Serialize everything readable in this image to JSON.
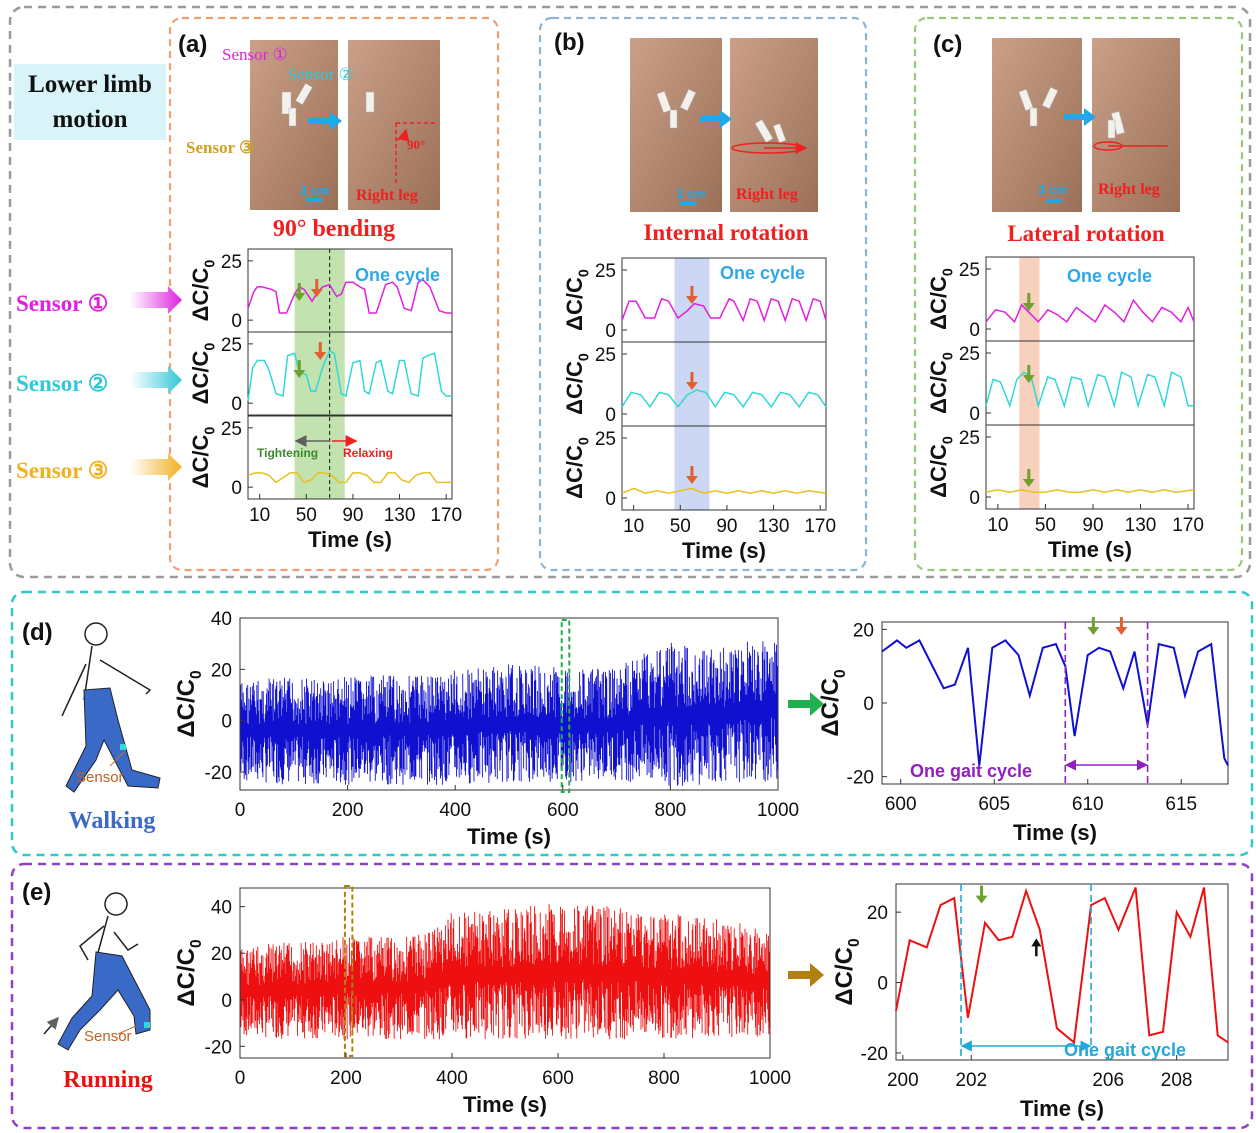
{
  "figure": {
    "title_box": {
      "line1": "Lower limb",
      "line2": "motion"
    },
    "sensor_labels": [
      "Sensor ①",
      "Sensor ②",
      "Sensor ③"
    ],
    "colors": {
      "magenta": "#e020e0",
      "cyan": "#30d8d8",
      "yellow": "#e8c020",
      "blue": "#1010d0",
      "red": "#ee1010",
      "green_arrow": "#70a030",
      "orange_arrow": "#e06030",
      "frame_gray": "#9a9a9a",
      "frame_orange": "#f0a070",
      "frame_blue": "#8ab4d8",
      "frame_green": "#98c878",
      "frame_teal": "#30c8c8",
      "frame_purple": "#9040c0",
      "purple_text": "#9020c0"
    },
    "panels": {
      "a": {
        "letter": "(a)",
        "title": "90° bending",
        "photo_labels": {
          "s1": "Sensor ①",
          "s2": "Sensor ②",
          "s3": "Sensor ③",
          "scale": "3 cm",
          "leg": "Right leg",
          "angle": "90°"
        },
        "one_cycle": "One cycle",
        "tightening": "Tightening",
        "relaxing": "Relaxing",
        "ylabel": "ΔC/C₀",
        "xlabel": "Time (s)"
      },
      "b": {
        "letter": "(b)",
        "title": "Internal rotation",
        "photo_labels": {
          "scale": "3 cm",
          "leg": "Right leg"
        },
        "one_cycle": "One cycle",
        "ylabel": "ΔC/C₀",
        "xlabel": "Time (s)"
      },
      "c": {
        "letter": "(c)",
        "title": "Lateral rotation",
        "photo_labels": {
          "scale": "3 cm",
          "leg": "Right leg"
        },
        "one_cycle": "One cycle",
        "ylabel": "ΔC/C₀",
        "xlabel": "Time (s)"
      },
      "d": {
        "letter": "(d)",
        "activity": "Walking",
        "sensor": "Sensor",
        "gait": "One gait cycle",
        "ylabel": "ΔC/C₀",
        "xlabel": "Time (s)"
      },
      "e": {
        "letter": "(e)",
        "activity": "Running",
        "sensor": "Sensor",
        "gait": "One gait cycle",
        "ylabel": "ΔC/C₀",
        "xlabel": "Time (s)"
      }
    }
  },
  "chart_data": [
    {
      "id": "a",
      "type": "line",
      "x_ticks": [
        10,
        50,
        90,
        130,
        170
      ],
      "xlim": [
        0,
        175
      ],
      "highlight": [
        40,
        83
      ],
      "dashed_line": 70,
      "series": [
        {
          "name": "Sensor ①",
          "color": "#e020e0",
          "y_ticks": [
            0,
            25
          ],
          "ylim": [
            -5,
            30
          ],
          "x": [
            0,
            5,
            8,
            12,
            20,
            24,
            27,
            33,
            40,
            44,
            48,
            55,
            60,
            64,
            70,
            76,
            80,
            84,
            90,
            96,
            100,
            104,
            110,
            118,
            124,
            128,
            134,
            140,
            146,
            150,
            156,
            164,
            170,
            175
          ],
          "y": [
            5,
            12,
            14,
            14,
            13,
            12,
            3,
            3,
            11,
            14,
            13,
            8,
            12,
            14,
            15,
            10,
            11,
            16,
            16,
            14,
            13,
            3,
            3,
            15,
            16,
            14,
            5,
            4,
            16,
            17,
            14,
            4,
            3,
            3
          ]
        },
        {
          "name": "Sensor ②",
          "color": "#30d8d8",
          "y_ticks": [
            0,
            25
          ],
          "ylim": [
            -5,
            30
          ],
          "x": [
            0,
            4,
            8,
            14,
            18,
            24,
            30,
            34,
            40,
            44,
            50,
            54,
            58,
            64,
            70,
            74,
            80,
            84,
            90,
            96,
            100,
            104,
            110,
            114,
            120,
            124,
            130,
            134,
            140,
            146,
            150,
            154,
            160,
            166,
            170,
            175
          ],
          "y": [
            1,
            15,
            18,
            18,
            14,
            4,
            3,
            20,
            21,
            13,
            12,
            5,
            5,
            15,
            22,
            21,
            4,
            3,
            17,
            18,
            5,
            4,
            17,
            18,
            5,
            4,
            18,
            18,
            4,
            3,
            19,
            20,
            21,
            5,
            3,
            3
          ]
        },
        {
          "name": "Sensor ③",
          "color": "#e8c020",
          "y_ticks": [
            0,
            25
          ],
          "ylim": [
            -5,
            30
          ],
          "x": [
            0,
            6,
            12,
            18,
            24,
            30,
            36,
            42,
            48,
            54,
            60,
            66,
            72,
            78,
            84,
            90,
            96,
            102,
            108,
            114,
            120,
            126,
            132,
            138,
            144,
            150,
            156,
            162,
            168,
            175
          ],
          "y": [
            5,
            6,
            6,
            5,
            2,
            4,
            6,
            6,
            2,
            3,
            6,
            6,
            5,
            2,
            2,
            6,
            6,
            5,
            2,
            2,
            6,
            6,
            3,
            2,
            5,
            6,
            6,
            2,
            2,
            2
          ]
        }
      ]
    },
    {
      "id": "b",
      "type": "line",
      "x_ticks": [
        10,
        50,
        90,
        130,
        170
      ],
      "xlim": [
        0,
        175
      ],
      "highlight": [
        45,
        75
      ],
      "series": [
        {
          "name": "Sensor ①",
          "color": "#e020e0",
          "y_ticks": [
            0,
            25
          ],
          "ylim": [
            -5,
            30
          ],
          "x": [
            0,
            6,
            12,
            20,
            28,
            34,
            40,
            48,
            56,
            62,
            70,
            76,
            84,
            92,
            96,
            104,
            110,
            116,
            122,
            128,
            134,
            140,
            146,
            152,
            158,
            164,
            170,
            175
          ],
          "y": [
            4,
            12,
            12,
            5,
            5,
            13,
            12,
            5,
            8,
            11,
            10,
            5,
            5,
            13,
            12,
            4,
            13,
            12,
            4,
            13,
            12,
            4,
            13,
            12,
            4,
            13,
            12,
            4
          ]
        },
        {
          "name": "Sensor ②",
          "color": "#30d8d8",
          "y_ticks": [
            0,
            25
          ],
          "ylim": [
            -5,
            30
          ],
          "x": [
            0,
            8,
            16,
            24,
            32,
            40,
            48,
            56,
            64,
            72,
            80,
            88,
            96,
            104,
            112,
            120,
            128,
            136,
            144,
            152,
            160,
            168,
            175
          ],
          "y": [
            3,
            9,
            8,
            3,
            9,
            8,
            3,
            8,
            10,
            9,
            3,
            9,
            8,
            3,
            9,
            8,
            3,
            9,
            8,
            3,
            9,
            8,
            3
          ]
        },
        {
          "name": "Sensor ③",
          "color": "#e8c020",
          "y_ticks": [
            0,
            25
          ],
          "ylim": [
            -5,
            30
          ],
          "x": [
            0,
            10,
            20,
            30,
            40,
            50,
            60,
            70,
            80,
            90,
            100,
            110,
            120,
            130,
            140,
            150,
            160,
            175
          ],
          "y": [
            2,
            4,
            2,
            3,
            2,
            3,
            4,
            2,
            3,
            2,
            3,
            2,
            3,
            2,
            3,
            2,
            3,
            2
          ]
        }
      ]
    },
    {
      "id": "c",
      "type": "line",
      "x_ticks": [
        10,
        50,
        90,
        130,
        170
      ],
      "xlim": [
        0,
        175
      ],
      "highlight": [
        28,
        45
      ],
      "series": [
        {
          "name": "Sensor ①",
          "color": "#e020e0",
          "y_ticks": [
            0,
            25
          ],
          "ylim": [
            -5,
            30
          ],
          "x": [
            0,
            8,
            16,
            24,
            30,
            36,
            44,
            52,
            60,
            68,
            76,
            84,
            92,
            100,
            108,
            116,
            124,
            132,
            140,
            148,
            156,
            164,
            170,
            175
          ],
          "y": [
            3,
            8,
            7,
            3,
            10,
            7,
            3,
            8,
            6,
            3,
            9,
            6,
            3,
            10,
            7,
            3,
            12,
            7,
            3,
            9,
            7,
            3,
            9,
            3
          ]
        },
        {
          "name": "Sensor ②",
          "color": "#30d8d8",
          "y_ticks": [
            0,
            25
          ],
          "ylim": [
            -5,
            30
          ],
          "x": [
            0,
            6,
            12,
            20,
            26,
            32,
            38,
            44,
            52,
            58,
            66,
            72,
            80,
            86,
            94,
            100,
            108,
            114,
            122,
            128,
            136,
            142,
            150,
            156,
            164,
            170,
            175
          ],
          "y": [
            3,
            14,
            13,
            3,
            14,
            17,
            15,
            3,
            15,
            14,
            3,
            15,
            14,
            3,
            16,
            15,
            3,
            17,
            15,
            3,
            16,
            15,
            3,
            17,
            15,
            3,
            3
          ]
        },
        {
          "name": "Sensor ③",
          "color": "#e8c020",
          "y_ticks": [
            0,
            25
          ],
          "ylim": [
            -5,
            30
          ],
          "x": [
            0,
            10,
            20,
            30,
            40,
            50,
            60,
            70,
            80,
            90,
            100,
            110,
            120,
            130,
            140,
            150,
            160,
            175
          ],
          "y": [
            2,
            3,
            2,
            3,
            2,
            2,
            3,
            2,
            2,
            3,
            2,
            3,
            2,
            3,
            2,
            3,
            2,
            3
          ]
        }
      ]
    },
    {
      "id": "d_full",
      "type": "line",
      "color": "#1010d0",
      "x_ticks": [
        0,
        200,
        400,
        600,
        800,
        1000
      ],
      "y_ticks": [
        -20,
        0,
        20,
        40
      ],
      "xlim": [
        0,
        1000
      ],
      "ylim": [
        -27,
        40
      ],
      "zoom_window": [
        598,
        612
      ],
      "envelope": {
        "x": [
          0,
          100,
          200,
          300,
          400,
          500,
          600,
          700,
          750,
          800,
          850,
          900,
          1000
        ],
        "upper": [
          16,
          17,
          17,
          18,
          20,
          22,
          21,
          20,
          28,
          32,
          28,
          29,
          33
        ],
        "lower": [
          -24,
          -25,
          -25,
          -25,
          -25,
          -24,
          -24,
          -23,
          -25,
          -26,
          -25,
          -24,
          -24
        ]
      }
    },
    {
      "id": "d_zoom",
      "type": "line",
      "color": "#1010d0",
      "x_ticks": [
        600,
        605,
        610,
        615
      ],
      "y_ticks": [
        -20,
        0,
        20
      ],
      "xlim": [
        599,
        617.5
      ],
      "ylim": [
        -22,
        22
      ],
      "gait_cycle": [
        608.8,
        613.2
      ],
      "x": [
        599,
        599.8,
        600.3,
        601,
        601.6,
        602.3,
        602.9,
        603.6,
        604.2,
        604.9,
        605.6,
        606.3,
        606.9,
        607.6,
        608.3,
        608.8,
        609.3,
        610.0,
        610.6,
        611.2,
        611.9,
        612.5,
        613.2,
        613.8,
        614.6,
        615.2,
        615.9,
        616.6,
        617.3,
        617.5
      ],
      "y": [
        14,
        17,
        15,
        17,
        11,
        4,
        5,
        15,
        -17,
        15,
        17,
        13,
        2,
        15,
        16,
        10,
        -9,
        13,
        15,
        14,
        4,
        14,
        -6,
        16,
        15,
        2,
        14,
        16,
        -15,
        -17
      ]
    },
    {
      "id": "e_full",
      "type": "line",
      "color": "#ee1010",
      "x_ticks": [
        0,
        200,
        400,
        600,
        800,
        1000
      ],
      "y_ticks": [
        -20,
        0,
        20,
        40
      ],
      "xlim": [
        0,
        1000
      ],
      "ylim": [
        -25,
        48
      ],
      "zoom_window": [
        198,
        212
      ],
      "envelope": {
        "x": [
          0,
          100,
          200,
          300,
          350,
          400,
          500,
          600,
          700,
          800,
          900,
          1000
        ],
        "upper": [
          23,
          25,
          27,
          27,
          30,
          38,
          39,
          42,
          40,
          38,
          35,
          30
        ],
        "lower": [
          -16,
          -17,
          -17,
          -17,
          -17,
          -17,
          -17,
          -17,
          -17,
          -17,
          -16,
          -16
        ]
      }
    },
    {
      "id": "e_zoom",
      "type": "line",
      "color": "#ee1010",
      "x_ticks": [
        200,
        202,
        206,
        208
      ],
      "y_ticks": [
        -20,
        0,
        20
      ],
      "xlim": [
        199.8,
        209.5
      ],
      "ylim": [
        -22,
        28
      ],
      "gait_cycle": [
        201.7,
        205.5
      ],
      "x": [
        199.8,
        200.2,
        200.7,
        201.1,
        201.5,
        201.9,
        202.4,
        202.8,
        203.2,
        203.6,
        204.0,
        204.5,
        205.0,
        205.5,
        205.9,
        206.3,
        206.8,
        207.2,
        207.6,
        208.0,
        208.4,
        208.8,
        209.2,
        209.5
      ],
      "y": [
        -8,
        12,
        10,
        22,
        24,
        -10,
        17,
        12,
        13,
        26,
        15,
        -13,
        -17,
        22,
        24,
        15,
        27,
        -15,
        -14,
        20,
        13,
        27,
        -15,
        -17
      ]
    }
  ]
}
